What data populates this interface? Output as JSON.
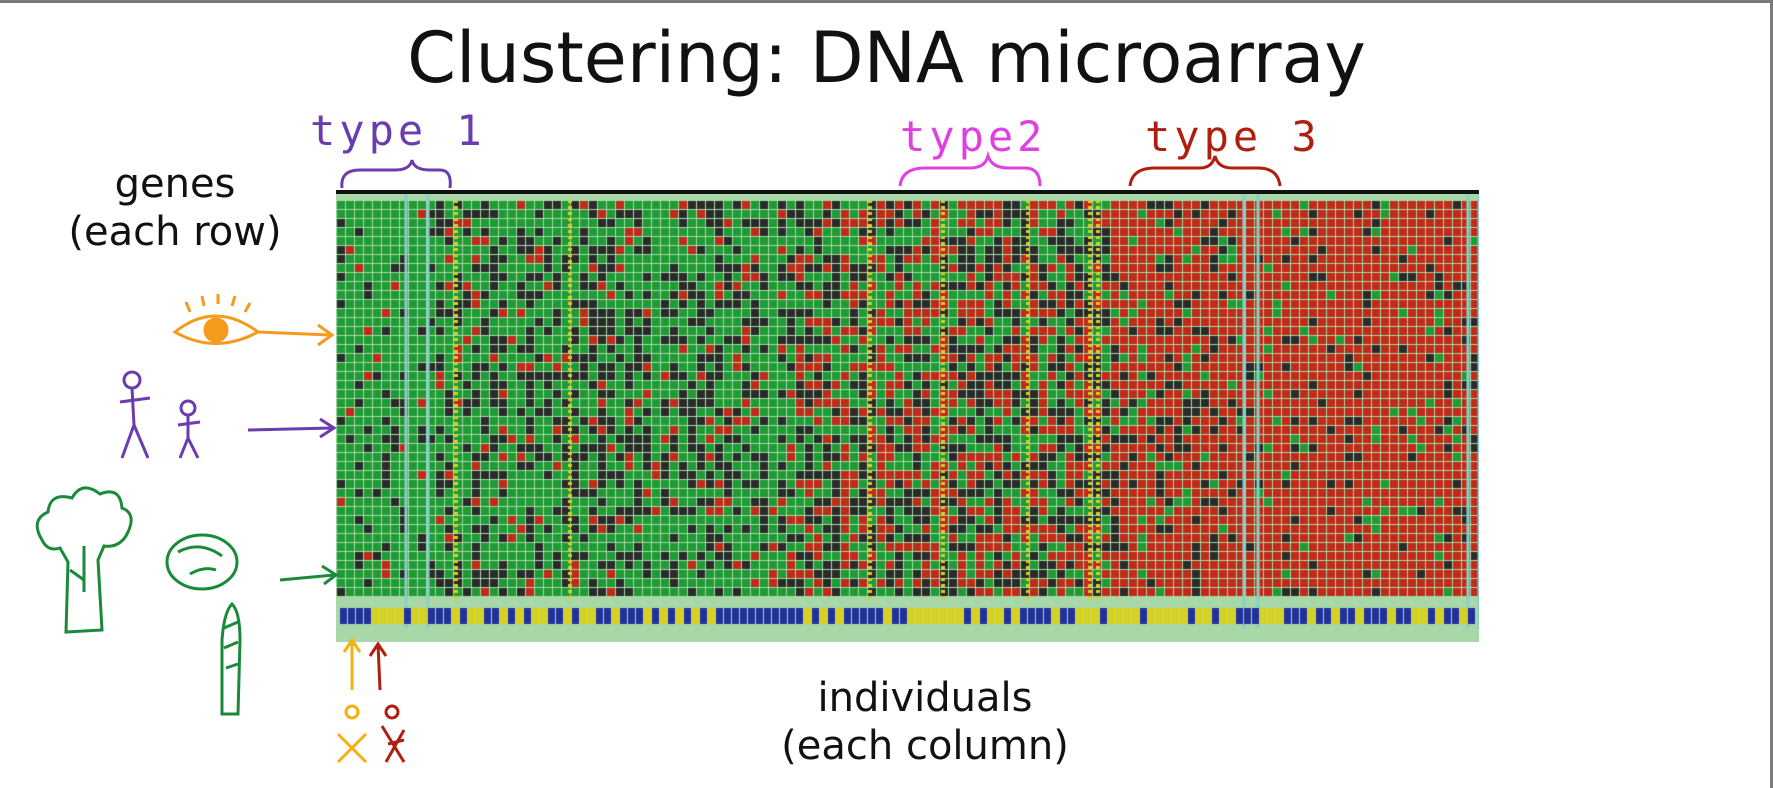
{
  "title": "Clustering: DNA microarray",
  "rows_label_line1": "genes",
  "rows_label_line2": "(each row)",
  "cols_label_line1": "individuals",
  "cols_label_line2": "(each column)",
  "annotations": [
    {
      "text": "type 1",
      "color": "#6a3cb0"
    },
    {
      "text": "type2",
      "color": "#e040e0"
    },
    {
      "text": "type 3",
      "color": "#b01e10"
    }
  ],
  "colors": {
    "green": "#1f9a35",
    "red": "#c02a18",
    "dark": "#2a2a2a",
    "yellow": "#d7d020",
    "blue": "#24309a",
    "frame": "#a8d8a8",
    "eye": "#f59a1a",
    "people": "#6a3cb0",
    "veg": "#1a8a3a"
  },
  "icons": [
    "eye-icon",
    "people-icon",
    "broccoli-icon",
    "cabbage-icon",
    "asparagus-icon",
    "person-icon"
  ]
}
